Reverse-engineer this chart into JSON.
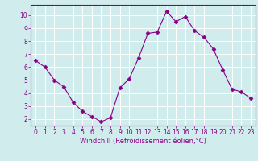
{
  "x": [
    0,
    1,
    2,
    3,
    4,
    5,
    6,
    7,
    8,
    9,
    10,
    11,
    12,
    13,
    14,
    15,
    16,
    17,
    18,
    19,
    20,
    21,
    22,
    23
  ],
  "y": [
    6.5,
    6.0,
    5.0,
    4.5,
    3.3,
    2.6,
    2.2,
    1.8,
    2.1,
    4.4,
    5.1,
    6.7,
    8.6,
    8.7,
    10.3,
    9.5,
    9.9,
    8.8,
    8.3,
    7.4,
    5.8,
    4.3,
    4.1,
    3.6
  ],
  "line_color": "#880088",
  "marker": "D",
  "marker_size": 2.5,
  "bg_color": "#d0ecec",
  "grid_color": "#ffffff",
  "xlabel": "Windchill (Refroidissement éolien,°C)",
  "xlim": [
    -0.5,
    23.5
  ],
  "ylim": [
    1.5,
    10.8
  ],
  "yticks": [
    2,
    3,
    4,
    5,
    6,
    7,
    8,
    9,
    10
  ],
  "xticks": [
    0,
    1,
    2,
    3,
    4,
    5,
    6,
    7,
    8,
    9,
    10,
    11,
    12,
    13,
    14,
    15,
    16,
    17,
    18,
    19,
    20,
    21,
    22,
    23
  ],
  "tick_label_fontsize": 5.5,
  "xlabel_fontsize": 6.0,
  "label_color": "#880088",
  "spine_color": "#880088"
}
